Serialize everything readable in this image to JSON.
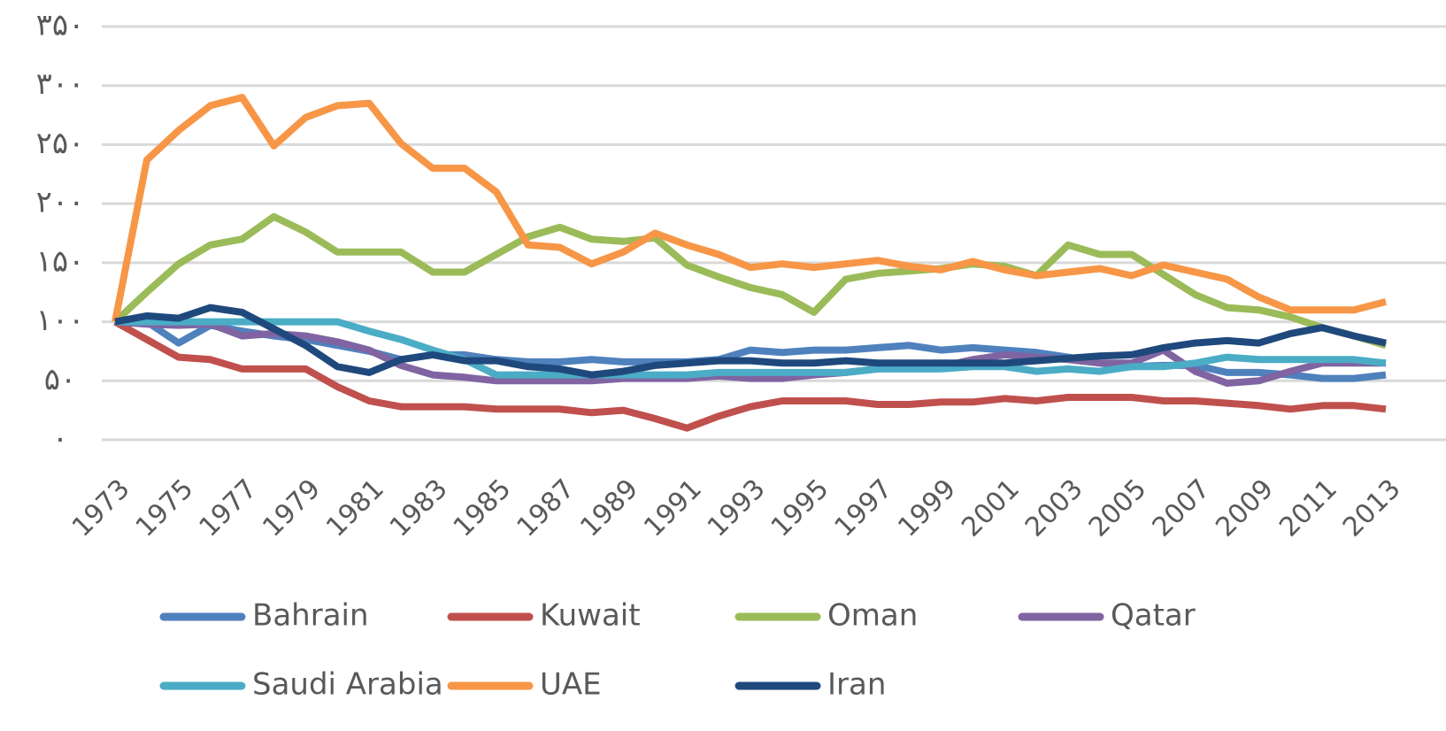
{
  "chart_data": {
    "type": "line",
    "x": [
      1973,
      1974,
      1975,
      1976,
      1977,
      1978,
      1979,
      1980,
      1981,
      1982,
      1983,
      1984,
      1985,
      1986,
      1987,
      1988,
      1989,
      1990,
      1991,
      1992,
      1993,
      1994,
      1995,
      1996,
      1997,
      1998,
      1999,
      2000,
      2001,
      2002,
      2003,
      2004,
      2005,
      2006,
      2007,
      2008,
      2009,
      2010,
      2011,
      2012,
      2013
    ],
    "xlim": [
      1973,
      2013
    ],
    "xticks": [
      1973,
      1975,
      1977,
      1979,
      1981,
      1983,
      1985,
      1987,
      1989,
      1991,
      1993,
      1995,
      1997,
      1999,
      2001,
      2003,
      2005,
      2007,
      2009,
      2011,
      2013
    ],
    "ylim": [
      0,
      350
    ],
    "yticks": [
      {
        "value": 0,
        "label": "۰"
      },
      {
        "value": 50,
        "label": "۵۰"
      },
      {
        "value": 100,
        "label": "۱۰۰"
      },
      {
        "value": 150,
        "label": "۱۵۰"
      },
      {
        "value": 200,
        "label": "۲۰۰"
      },
      {
        "value": 250,
        "label": "۲۵۰"
      },
      {
        "value": 300,
        "label": "۳۰۰"
      },
      {
        "value": 350,
        "label": "۳۵۰"
      }
    ],
    "grid": true,
    "legend": "bottom",
    "series": [
      {
        "name": "Bahrain",
        "color": "#4f81bd",
        "values": [
          100,
          100,
          82,
          97,
          92,
          88,
          85,
          80,
          75,
          68,
          72,
          72,
          68,
          66,
          66,
          68,
          66,
          66,
          66,
          68,
          76,
          74,
          76,
          76,
          78,
          80,
          76,
          78,
          76,
          74,
          70,
          65,
          62,
          63,
          63,
          57,
          57,
          55,
          52,
          52,
          55
        ]
      },
      {
        "name": "Kuwait",
        "color": "#c0504d",
        "values": [
          100,
          85,
          70,
          68,
          60,
          60,
          60,
          45,
          33,
          28,
          28,
          28,
          26,
          26,
          26,
          23,
          25,
          18,
          10,
          20,
          28,
          33,
          33,
          33,
          30,
          30,
          32,
          32,
          35,
          33,
          36,
          36,
          36,
          33,
          33,
          31,
          29,
          26,
          29,
          29,
          26
        ]
      },
      {
        "name": "Oman",
        "color": "#9bbb59",
        "values": [
          100,
          125,
          149,
          165,
          170,
          189,
          176,
          159,
          159,
          159,
          142,
          142,
          157,
          172,
          180,
          170,
          168,
          171,
          148,
          138,
          129,
          123,
          108,
          136,
          141,
          143,
          145,
          149,
          147,
          139,
          165,
          157,
          157,
          140,
          123,
          112,
          110,
          104,
          95,
          88,
          80
        ]
      },
      {
        "name": "Qatar",
        "color": "#8064a2",
        "values": [
          100,
          98,
          97,
          98,
          88,
          90,
          88,
          83,
          76,
          63,
          55,
          53,
          50,
          50,
          50,
          50,
          52,
          52,
          52,
          54,
          52,
          52,
          55,
          57,
          60,
          62,
          62,
          68,
          72,
          70,
          68,
          65,
          65,
          76,
          58,
          48,
          50,
          58,
          65,
          65,
          65
        ]
      },
      {
        "name": "Saudi Arabia",
        "color": "#4bacc6",
        "values": [
          100,
          100,
          100,
          100,
          100,
          100,
          100,
          100,
          92,
          85,
          76,
          68,
          55,
          55,
          55,
          55,
          55,
          55,
          55,
          57,
          57,
          57,
          57,
          57,
          60,
          60,
          60,
          62,
          62,
          58,
          60,
          58,
          62,
          62,
          65,
          70,
          68,
          68,
          68,
          68,
          65
        ]
      },
      {
        "name": "UAE",
        "color": "#f79646",
        "values": [
          100,
          237,
          262,
          283,
          290,
          249,
          273,
          283,
          285,
          251,
          230,
          230,
          210,
          165,
          163,
          149,
          159,
          175,
          165,
          157,
          146,
          149,
          146,
          149,
          152,
          147,
          144,
          151,
          144,
          139,
          142,
          145,
          139,
          148,
          142,
          136,
          121,
          110,
          110,
          110,
          117
        ]
      },
      {
        "name": "Iran",
        "color": "#1f497d",
        "values": [
          100,
          105,
          103,
          112,
          108,
          94,
          80,
          62,
          57,
          68,
          72,
          67,
          67,
          62,
          60,
          55,
          58,
          63,
          65,
          67,
          67,
          65,
          65,
          67,
          65,
          65,
          65,
          65,
          65,
          67,
          69,
          71,
          72,
          78,
          82,
          84,
          82,
          90,
          95,
          88,
          82
        ]
      }
    ]
  }
}
